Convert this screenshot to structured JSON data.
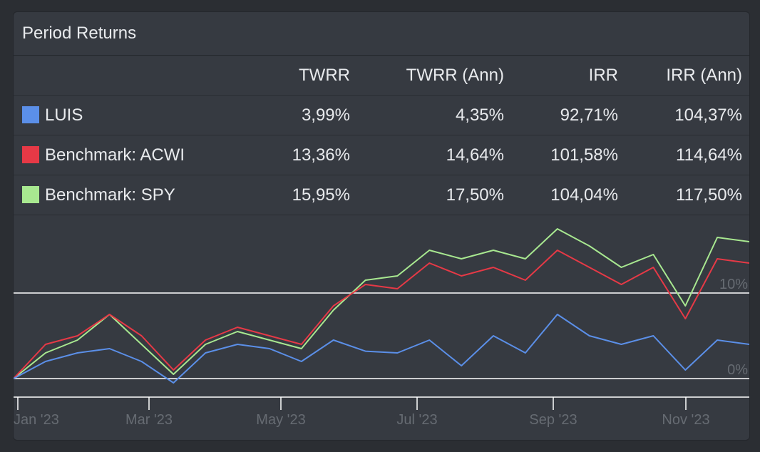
{
  "panel": {
    "title": "Period Returns"
  },
  "table": {
    "columns": [
      "",
      "TWRR",
      "TWRR (Ann)",
      "IRR",
      "IRR (Ann)"
    ],
    "rows": [
      {
        "name": "LUIS",
        "color": "#5b8fe8",
        "values": [
          "3,99%",
          "4,35%",
          "92,71%",
          "104,37%"
        ]
      },
      {
        "name": "Benchmark: ACWI",
        "color": "#e63946",
        "values": [
          "13,36%",
          "14,64%",
          "101,58%",
          "114,64%"
        ]
      },
      {
        "name": "Benchmark: SPY",
        "color": "#a8e890",
        "values": [
          "15,95%",
          "17,50%",
          "104,04%",
          "117,50%"
        ]
      }
    ]
  },
  "chart_data": {
    "type": "line",
    "x": [
      "2023-01-01",
      "2023-01-15",
      "2023-02-01",
      "2023-02-15",
      "2023-03-01",
      "2023-03-15",
      "2023-04-01",
      "2023-04-15",
      "2023-05-01",
      "2023-05-15",
      "2023-06-01",
      "2023-06-15",
      "2023-07-01",
      "2023-07-15",
      "2023-08-01",
      "2023-08-15",
      "2023-09-01",
      "2023-09-15",
      "2023-10-01",
      "2023-10-15",
      "2023-11-01",
      "2023-11-15",
      "2023-12-01",
      "2023-12-15"
    ],
    "series": [
      {
        "name": "LUIS",
        "color": "#5b8fe8",
        "values": [
          0,
          2.0,
          3.0,
          3.5,
          2.0,
          -0.5,
          3.0,
          4.0,
          3.5,
          2.0,
          4.5,
          3.2,
          3.0,
          4.5,
          1.5,
          5.0,
          3.0,
          7.5,
          5.0,
          4.0,
          5.0,
          1.0,
          4.5,
          4.0
        ]
      },
      {
        "name": "Benchmark: ACWI",
        "color": "#e63946",
        "values": [
          0,
          4.0,
          5.0,
          7.5,
          5.0,
          1.0,
          4.5,
          6.0,
          5.0,
          4.0,
          8.5,
          11.0,
          10.5,
          13.5,
          12.0,
          13.0,
          11.5,
          15.0,
          13.0,
          11.0,
          13.0,
          7.0,
          14.0,
          13.5
        ]
      },
      {
        "name": "Benchmark: SPY",
        "color": "#a8e890",
        "values": [
          0,
          3.0,
          4.5,
          7.5,
          4.0,
          0.5,
          4.0,
          5.5,
          4.5,
          3.5,
          8.0,
          11.5,
          12.0,
          15.0,
          14.0,
          15.0,
          14.0,
          17.5,
          15.5,
          13.0,
          14.5,
          8.5,
          16.5,
          16.0
        ]
      }
    ],
    "xticks": [
      "Jan '23",
      "Mar '23",
      "May '23",
      "Jul '23",
      "Sep '23",
      "Nov '23"
    ],
    "ytick_labels": [
      "0%",
      "10%"
    ],
    "ylim": [
      -2,
      18
    ]
  }
}
